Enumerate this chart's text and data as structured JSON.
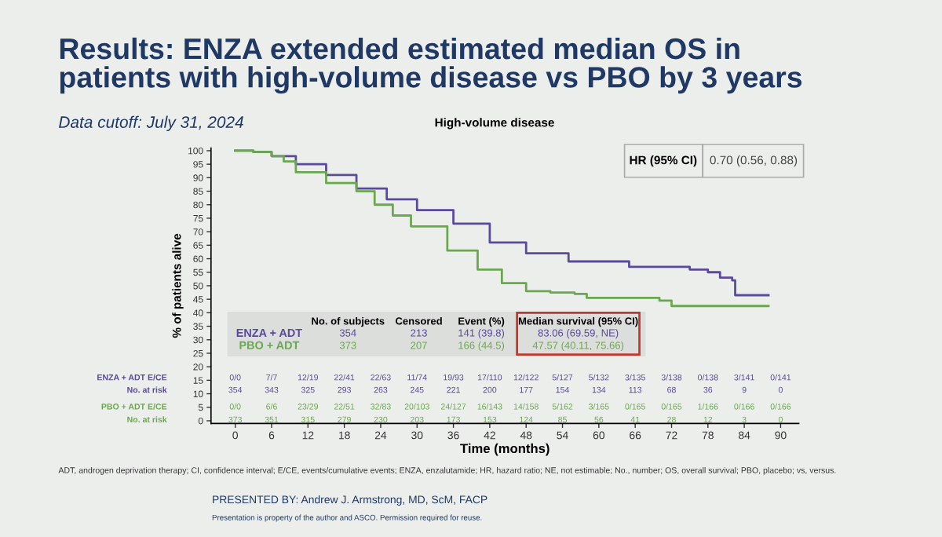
{
  "chart_data": {
    "type": "step",
    "title": "Results: ENZA extended estimated median OS in\npatients with high-volume disease vs PBO by 3 years",
    "subtitle": "Data cutoff: July 31, 2024",
    "xlabel": "Time (months)",
    "ylabel": "% of patients alive",
    "series": [
      {
        "name": "ENZA + ADT",
        "color": "#5b4a9b",
        "x": [
          0,
          3,
          6,
          10,
          15,
          20,
          25,
          30,
          36,
          42,
          48,
          55,
          65,
          75,
          78,
          80,
          82,
          82.5,
          88
        ],
        "values": [
          100,
          99.5,
          98,
          95,
          91,
          86,
          82,
          78,
          73,
          66,
          62,
          59,
          57,
          56,
          55,
          53,
          52,
          46.5,
          46.5
        ]
      },
      {
        "name": "PBO + ADT",
        "color": "#6aa84f",
        "x": [
          0,
          3,
          6,
          8,
          10,
          15,
          20,
          23,
          26,
          29,
          35,
          40,
          44,
          48,
          52,
          56,
          58,
          65,
          70,
          72,
          88
        ],
        "values": [
          100,
          99.5,
          98,
          96,
          92,
          88,
          85,
          80,
          76,
          72,
          63,
          56,
          51,
          48,
          47.5,
          47,
          45.5,
          45.5,
          44.5,
          42.5,
          42.5
        ]
      }
    ],
    "xlim": [
      -4,
      93
    ],
    "xticks": [
      0,
      6,
      12,
      18,
      24,
      30,
      36,
      42,
      48,
      54,
      60,
      66,
      72,
      78,
      84,
      90
    ],
    "ylim": [
      -1,
      101
    ],
    "yticks": [
      0,
      5,
      10,
      15,
      20,
      25,
      30,
      35,
      40,
      45,
      50,
      55,
      60,
      65,
      70,
      75,
      80,
      85,
      90,
      95,
      100
    ],
    "grid": false,
    "legend": false,
    "line_style": "solid",
    "annotations": [
      "High-volume disease",
      "HR (95% CI)",
      "0.70 (0.56, 0.88)",
      "No. of subjects",
      "Censored",
      "Event (%)",
      "Median survival (95% CI)",
      "354",
      "213",
      "141 (39.8)",
      "83.06 (69.59, NE)",
      "373",
      "207",
      "166 (44.5)",
      "47.57 (40.11, 75.66)",
      "ENZA + ADT E/CE",
      "0/0 7/7 12/19 22/41 22/63 11/74 19/93 17/110 12/122 5/127 5/132 3/135 3/138 0/138 3/141 0/141",
      "No. at risk",
      "354 343 325 293 263 245 221 200 177 154 134 113 68 36 9 0",
      "PBO + ADT E/CE",
      "0/0 6/6 23/29 22/51 32/83 20/103 24/127 16/143 14/158 5/162 3/165 0/165 0/165 1/166 0/166 0/166",
      "No. at risk",
      "373 351 315 279 230 203 173 153 124 85 56 41 28 12 3 0",
      "ADT, androgen deprivation therapy; CI, confidence interval; E/CE, events/cumulative events; ENZA, enzalutamide; HR, hazard ratio; NE, not estimable; No., number; OS, overall survival; PBO, placebo; vs, versus.",
      "PRESENTED BY: Andrew J. Armstrong, MD, ScM, FACP",
      "Presentation is property of the author and ASCO. Permission required for reuse."
    ]
  }
}
